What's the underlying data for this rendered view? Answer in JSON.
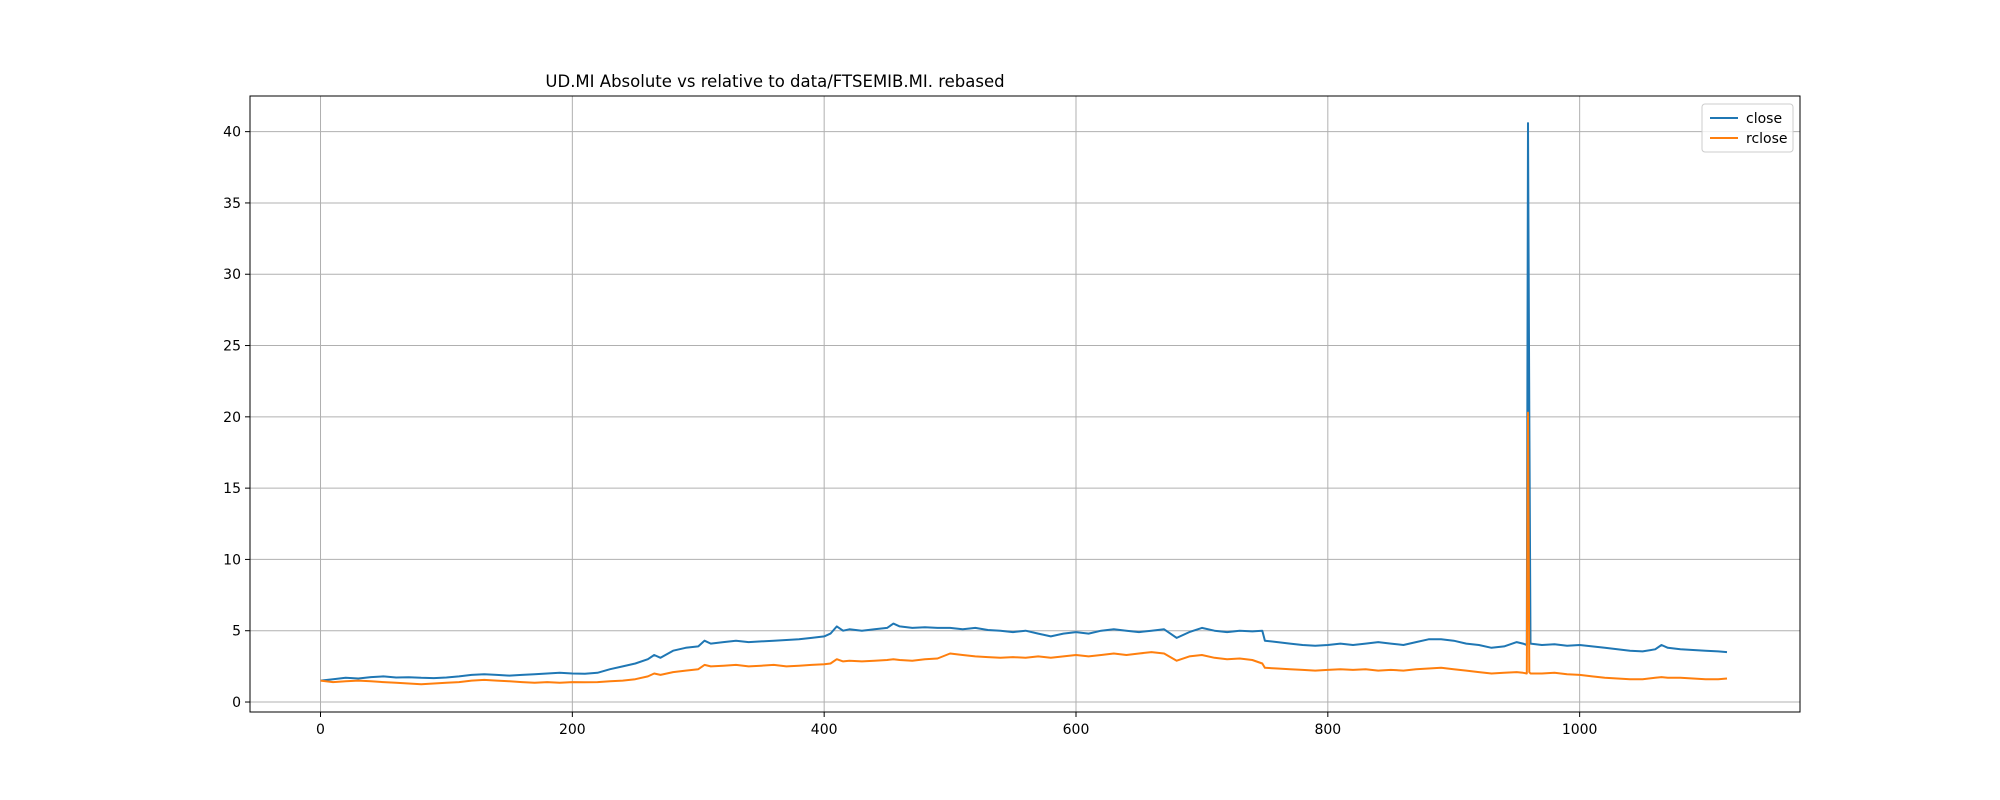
{
  "chart_data": {
    "type": "line",
    "title": "UD.MI Absolute vs relative to data/FTSEMIB.MI. rebased",
    "xlabel": "",
    "ylabel": "",
    "xlim": [
      -56,
      1175
    ],
    "ylim": [
      -0.7,
      42.5
    ],
    "x_ticks": [
      0,
      200,
      400,
      600,
      800,
      1000
    ],
    "y_ticks": [
      0,
      5,
      10,
      15,
      20,
      25,
      30,
      35,
      40
    ],
    "grid": true,
    "legend_position": "top-right",
    "series": [
      {
        "name": "close",
        "color": "#1f77b4",
        "points": [
          [
            0,
            1.5
          ],
          [
            10,
            1.6
          ],
          [
            20,
            1.7
          ],
          [
            30,
            1.65
          ],
          [
            40,
            1.75
          ],
          [
            50,
            1.8
          ],
          [
            60,
            1.72
          ],
          [
            70,
            1.74
          ],
          [
            80,
            1.7
          ],
          [
            90,
            1.68
          ],
          [
            100,
            1.72
          ],
          [
            110,
            1.8
          ],
          [
            120,
            1.9
          ],
          [
            130,
            1.95
          ],
          [
            140,
            1.9
          ],
          [
            150,
            1.85
          ],
          [
            160,
            1.9
          ],
          [
            170,
            1.95
          ],
          [
            180,
            2.0
          ],
          [
            190,
            2.05
          ],
          [
            200,
            2.0
          ],
          [
            210,
            1.98
          ],
          [
            220,
            2.05
          ],
          [
            230,
            2.3
          ],
          [
            240,
            2.5
          ],
          [
            250,
            2.7
          ],
          [
            260,
            3.0
          ],
          [
            265,
            3.3
          ],
          [
            270,
            3.1
          ],
          [
            280,
            3.6
          ],
          [
            290,
            3.8
          ],
          [
            300,
            3.9
          ],
          [
            305,
            4.3
          ],
          [
            310,
            4.1
          ],
          [
            320,
            4.2
          ],
          [
            330,
            4.3
          ],
          [
            340,
            4.2
          ],
          [
            350,
            4.25
          ],
          [
            360,
            4.3
          ],
          [
            370,
            4.35
          ],
          [
            380,
            4.4
          ],
          [
            390,
            4.5
          ],
          [
            400,
            4.6
          ],
          [
            405,
            4.8
          ],
          [
            410,
            5.3
          ],
          [
            415,
            5.0
          ],
          [
            420,
            5.1
          ],
          [
            430,
            5.0
          ],
          [
            440,
            5.1
          ],
          [
            450,
            5.2
          ],
          [
            455,
            5.5
          ],
          [
            460,
            5.3
          ],
          [
            470,
            5.2
          ],
          [
            480,
            5.25
          ],
          [
            490,
            5.2
          ],
          [
            500,
            5.2
          ],
          [
            510,
            5.1
          ],
          [
            520,
            5.2
          ],
          [
            530,
            5.05
          ],
          [
            540,
            5.0
          ],
          [
            550,
            4.9
          ],
          [
            560,
            5.0
          ],
          [
            570,
            4.8
          ],
          [
            580,
            4.6
          ],
          [
            590,
            4.8
          ],
          [
            600,
            4.9
          ],
          [
            610,
            4.8
          ],
          [
            620,
            5.0
          ],
          [
            630,
            5.1
          ],
          [
            640,
            5.0
          ],
          [
            650,
            4.9
          ],
          [
            660,
            5.0
          ],
          [
            670,
            5.1
          ],
          [
            680,
            4.5
          ],
          [
            690,
            4.9
          ],
          [
            700,
            5.2
          ],
          [
            710,
            5.0
          ],
          [
            720,
            4.9
          ],
          [
            730,
            5.0
          ],
          [
            740,
            4.95
          ],
          [
            748,
            5.0
          ],
          [
            750,
            4.3
          ],
          [
            760,
            4.2
          ],
          [
            770,
            4.1
          ],
          [
            780,
            4.0
          ],
          [
            790,
            3.95
          ],
          [
            800,
            4.0
          ],
          [
            810,
            4.1
          ],
          [
            820,
            4.0
          ],
          [
            830,
            4.1
          ],
          [
            840,
            4.2
          ],
          [
            850,
            4.1
          ],
          [
            860,
            4.0
          ],
          [
            870,
            4.2
          ],
          [
            880,
            4.4
          ],
          [
            890,
            4.4
          ],
          [
            900,
            4.3
          ],
          [
            910,
            4.1
          ],
          [
            920,
            4.0
          ],
          [
            930,
            3.8
          ],
          [
            940,
            3.9
          ],
          [
            950,
            4.2
          ],
          [
            955,
            4.1
          ],
          [
            958,
            4.0
          ],
          [
            959,
            40.6
          ],
          [
            960,
            20.3
          ],
          [
            961,
            4.1
          ],
          [
            970,
            4.0
          ],
          [
            980,
            4.05
          ],
          [
            990,
            3.95
          ],
          [
            1000,
            4.0
          ],
          [
            1010,
            3.9
          ],
          [
            1020,
            3.8
          ],
          [
            1030,
            3.7
          ],
          [
            1040,
            3.6
          ],
          [
            1050,
            3.55
          ],
          [
            1060,
            3.7
          ],
          [
            1065,
            4.0
          ],
          [
            1070,
            3.8
          ],
          [
            1080,
            3.7
          ],
          [
            1090,
            3.65
          ],
          [
            1100,
            3.6
          ],
          [
            1110,
            3.55
          ],
          [
            1117,
            3.5
          ]
        ]
      },
      {
        "name": "rclose",
        "color": "#ff7f0e",
        "points": [
          [
            0,
            1.5
          ],
          [
            10,
            1.4
          ],
          [
            20,
            1.45
          ],
          [
            30,
            1.5
          ],
          [
            40,
            1.45
          ],
          [
            50,
            1.4
          ],
          [
            60,
            1.35
          ],
          [
            70,
            1.3
          ],
          [
            80,
            1.25
          ],
          [
            90,
            1.3
          ],
          [
            100,
            1.35
          ],
          [
            110,
            1.4
          ],
          [
            120,
            1.5
          ],
          [
            130,
            1.55
          ],
          [
            140,
            1.5
          ],
          [
            150,
            1.45
          ],
          [
            160,
            1.4
          ],
          [
            170,
            1.35
          ],
          [
            180,
            1.4
          ],
          [
            190,
            1.35
          ],
          [
            200,
            1.4
          ],
          [
            210,
            1.38
          ],
          [
            220,
            1.4
          ],
          [
            230,
            1.45
          ],
          [
            240,
            1.5
          ],
          [
            250,
            1.6
          ],
          [
            260,
            1.8
          ],
          [
            265,
            2.0
          ],
          [
            270,
            1.9
          ],
          [
            280,
            2.1
          ],
          [
            290,
            2.2
          ],
          [
            300,
            2.3
          ],
          [
            305,
            2.6
          ],
          [
            310,
            2.5
          ],
          [
            320,
            2.55
          ],
          [
            330,
            2.6
          ],
          [
            340,
            2.5
          ],
          [
            350,
            2.55
          ],
          [
            360,
            2.6
          ],
          [
            370,
            2.5
          ],
          [
            380,
            2.55
          ],
          [
            390,
            2.6
          ],
          [
            400,
            2.65
          ],
          [
            405,
            2.7
          ],
          [
            410,
            3.0
          ],
          [
            415,
            2.85
          ],
          [
            420,
            2.9
          ],
          [
            430,
            2.85
          ],
          [
            440,
            2.9
          ],
          [
            450,
            2.95
          ],
          [
            455,
            3.0
          ],
          [
            460,
            2.95
          ],
          [
            470,
            2.9
          ],
          [
            480,
            3.0
          ],
          [
            490,
            3.05
          ],
          [
            500,
            3.4
          ],
          [
            510,
            3.3
          ],
          [
            520,
            3.2
          ],
          [
            530,
            3.15
          ],
          [
            540,
            3.1
          ],
          [
            550,
            3.15
          ],
          [
            560,
            3.1
          ],
          [
            570,
            3.2
          ],
          [
            580,
            3.1
          ],
          [
            590,
            3.2
          ],
          [
            600,
            3.3
          ],
          [
            610,
            3.2
          ],
          [
            620,
            3.3
          ],
          [
            630,
            3.4
          ],
          [
            640,
            3.3
          ],
          [
            650,
            3.4
          ],
          [
            660,
            3.5
          ],
          [
            670,
            3.4
          ],
          [
            680,
            2.9
          ],
          [
            690,
            3.2
          ],
          [
            700,
            3.3
          ],
          [
            710,
            3.1
          ],
          [
            720,
            3.0
          ],
          [
            730,
            3.05
          ],
          [
            740,
            2.95
          ],
          [
            748,
            2.7
          ],
          [
            750,
            2.4
          ],
          [
            760,
            2.35
          ],
          [
            770,
            2.3
          ],
          [
            780,
            2.25
          ],
          [
            790,
            2.2
          ],
          [
            800,
            2.25
          ],
          [
            810,
            2.3
          ],
          [
            820,
            2.25
          ],
          [
            830,
            2.3
          ],
          [
            840,
            2.2
          ],
          [
            850,
            2.25
          ],
          [
            860,
            2.2
          ],
          [
            870,
            2.3
          ],
          [
            880,
            2.35
          ],
          [
            890,
            2.4
          ],
          [
            900,
            2.3
          ],
          [
            910,
            2.2
          ],
          [
            920,
            2.1
          ],
          [
            930,
            2.0
          ],
          [
            940,
            2.05
          ],
          [
            950,
            2.1
          ],
          [
            955,
            2.05
          ],
          [
            958,
            2.0
          ],
          [
            959,
            20.3
          ],
          [
            960,
            2.1
          ],
          [
            961,
            2.0
          ],
          [
            970,
            2.0
          ],
          [
            980,
            2.05
          ],
          [
            990,
            1.95
          ],
          [
            1000,
            1.9
          ],
          [
            1010,
            1.8
          ],
          [
            1020,
            1.7
          ],
          [
            1030,
            1.65
          ],
          [
            1040,
            1.6
          ],
          [
            1050,
            1.6
          ],
          [
            1060,
            1.7
          ],
          [
            1065,
            1.75
          ],
          [
            1070,
            1.7
          ],
          [
            1080,
            1.7
          ],
          [
            1090,
            1.65
          ],
          [
            1100,
            1.6
          ],
          [
            1110,
            1.6
          ],
          [
            1117,
            1.65
          ]
        ]
      }
    ]
  }
}
